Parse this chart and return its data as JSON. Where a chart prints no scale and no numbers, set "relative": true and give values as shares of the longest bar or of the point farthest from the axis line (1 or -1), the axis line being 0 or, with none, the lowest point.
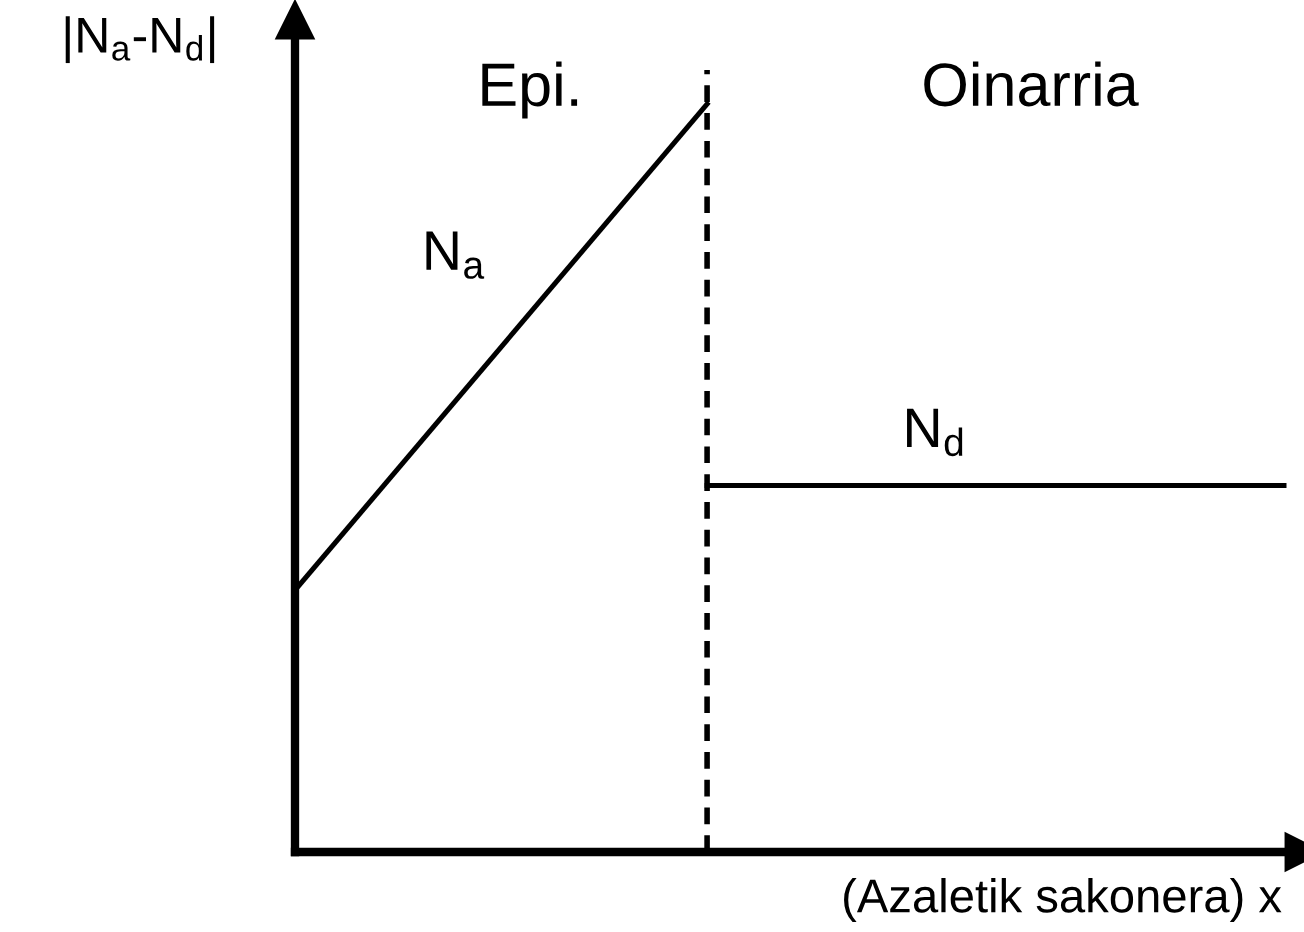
{
  "chart_data": {
    "type": "line",
    "relative": true,
    "xlabel": "(Azaletik sakonera) x",
    "ylabel": "|N$_{a}$-N$_{d}$|",
    "categories": [
      null,
      null,
      null,
      null,
      null,
      null,
      null,
      null,
      null,
      null,
      null,
      null,
      null
    ],
    "series": [
      {
        "name": "N$_{a}$",
        "color": "#000000",
        "values": [
          0.35,
          null,
          null,
          null,
          null,
          1,
          null,
          null,
          null,
          null,
          null,
          null,
          null
        ]
      },
      {
        "name": "N$_{d}$",
        "color": "#000000",
        "values": [
          null,
          null,
          null,
          null,
          null,
          0.49,
          null,
          null,
          null,
          null,
          null,
          null,
          0.49
        ]
      }
    ],
    "annotations": [
      "Epi.",
      "Oinarria"
    ],
    "grid": false,
    "legend": false
  }
}
